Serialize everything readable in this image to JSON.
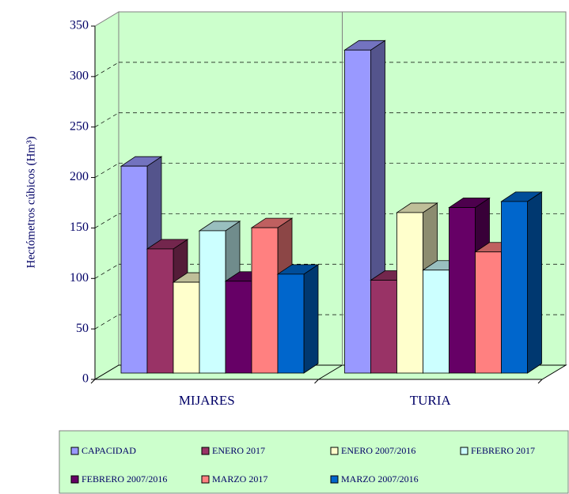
{
  "chart_data": {
    "type": "bar3d",
    "y_label": "Hectómetros cúbicos (Hm³)",
    "categories": [
      "MIJARES",
      "TURIA"
    ],
    "series": [
      {
        "name": "CAPACIDAD",
        "color": "#9999ff",
        "values": [
          205,
          320
        ]
      },
      {
        "name": "ENERO 2017",
        "color": "#993366",
        "values": [
          123,
          92
        ]
      },
      {
        "name": "ENERO 2007/2016",
        "color": "#ffffcc",
        "values": [
          90,
          159
        ]
      },
      {
        "name": "FEBRERO 2017",
        "color": "#ccffff",
        "values": [
          141,
          102
        ]
      },
      {
        "name": "FEBRERO 2007/2016",
        "color": "#660066",
        "values": [
          91,
          164
        ]
      },
      {
        "name": "MARZO 2017",
        "color": "#ff8080",
        "values": [
          144,
          120
        ]
      },
      {
        "name": "MARZO 2007/2016",
        "color": "#0066cc",
        "values": [
          98,
          170
        ]
      }
    ],
    "ylim": [
      0,
      350
    ],
    "yticks": [
      0,
      50,
      100,
      150,
      200,
      250,
      300,
      350
    ],
    "grid": true,
    "plot_color": "#ccffcc",
    "legend_position": "bottom"
  }
}
